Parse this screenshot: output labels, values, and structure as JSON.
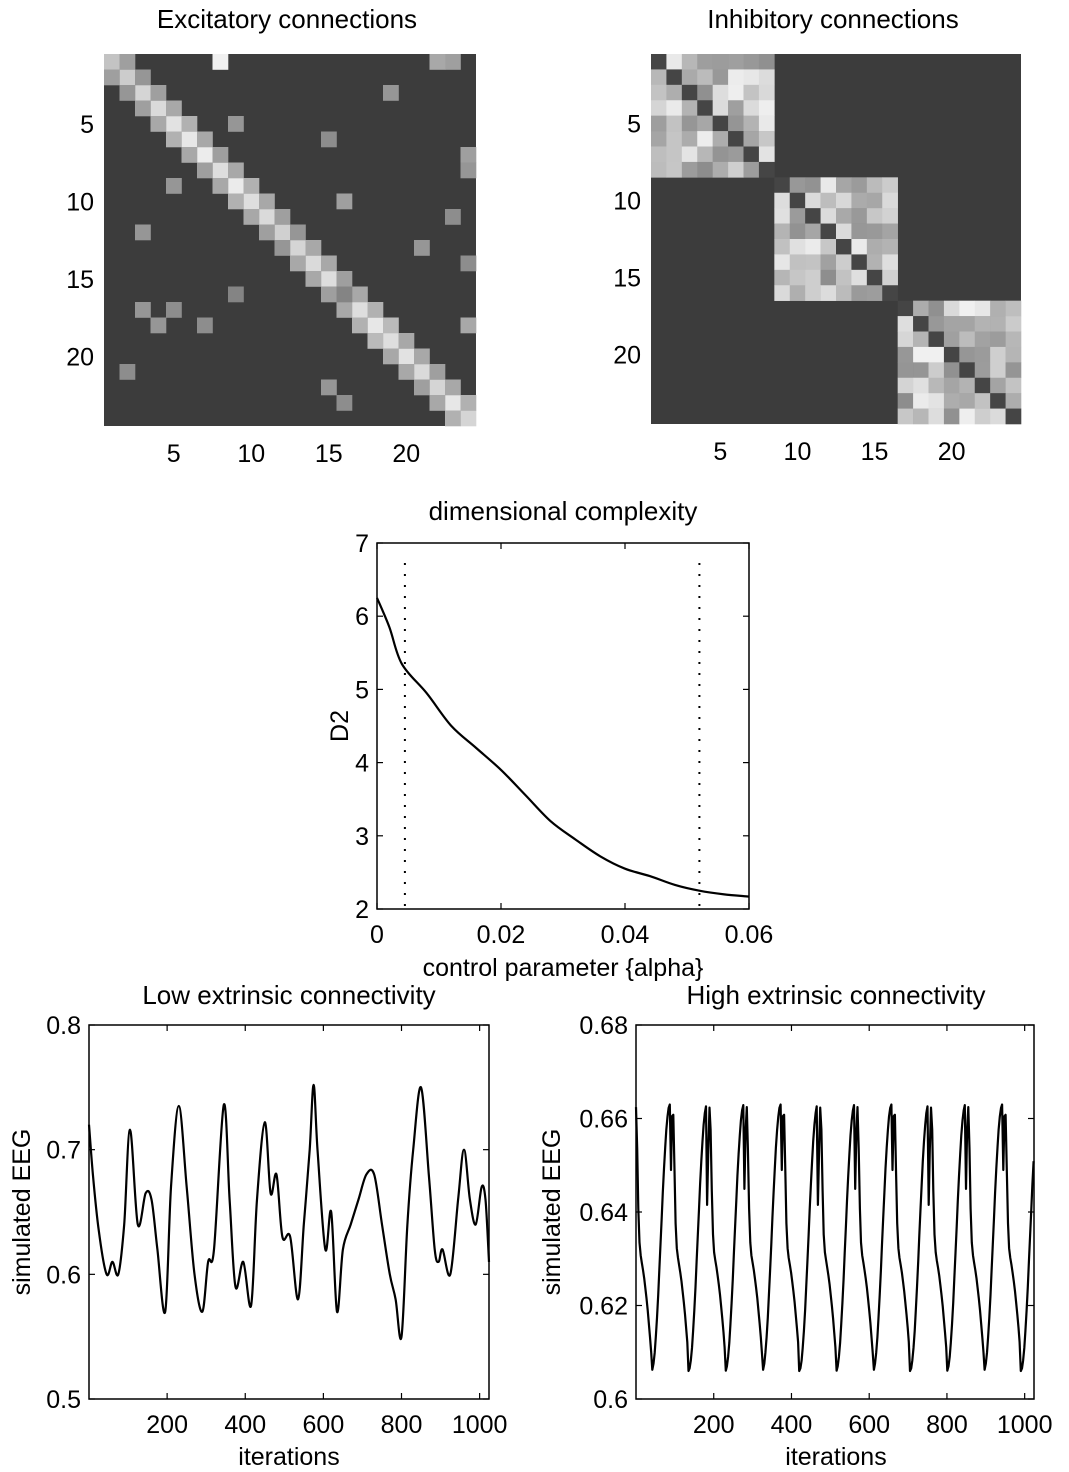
{
  "chart_data": [
    {
      "type": "heatmap",
      "title": "Excitatory connections",
      "size": 24,
      "ticks": [
        5,
        10,
        15,
        20
      ],
      "background": "#3c3c3c",
      "cells": [
        [
          1,
          1,
          0.75
        ],
        [
          2,
          2,
          0.8
        ],
        [
          3,
          3,
          0.85
        ],
        [
          4,
          4,
          0.88
        ],
        [
          5,
          5,
          0.92
        ],
        [
          6,
          6,
          0.95
        ],
        [
          7,
          7,
          0.98
        ],
        [
          8,
          8,
          0.9
        ],
        [
          9,
          9,
          0.97
        ],
        [
          10,
          10,
          0.9
        ],
        [
          11,
          11,
          0.88
        ],
        [
          12,
          12,
          0.82
        ],
        [
          13,
          13,
          0.85
        ],
        [
          14,
          14,
          0.88
        ],
        [
          15,
          15,
          0.9
        ],
        [
          16,
          16,
          0.8
        ],
        [
          17,
          17,
          0.9
        ],
        [
          18,
          18,
          0.95
        ],
        [
          19,
          19,
          0.9
        ],
        [
          20,
          20,
          0.92
        ],
        [
          21,
          21,
          0.88
        ],
        [
          22,
          22,
          0.85
        ],
        [
          23,
          23,
          0.95
        ],
        [
          24,
          24,
          0.85
        ],
        [
          1,
          2,
          0.55
        ],
        [
          2,
          3,
          0.5
        ],
        [
          3,
          4,
          0.55
        ],
        [
          4,
          5,
          0.6
        ],
        [
          5,
          6,
          0.65
        ],
        [
          6,
          7,
          0.6
        ],
        [
          7,
          8,
          0.55
        ],
        [
          8,
          9,
          0.6
        ],
        [
          9,
          10,
          0.65
        ],
        [
          10,
          11,
          0.6
        ],
        [
          11,
          12,
          0.55
        ],
        [
          12,
          13,
          0.5
        ],
        [
          13,
          14,
          0.6
        ],
        [
          14,
          15,
          0.6
        ],
        [
          15,
          16,
          0.55
        ],
        [
          16,
          17,
          0.6
        ],
        [
          17,
          18,
          0.65
        ],
        [
          18,
          19,
          0.7
        ],
        [
          19,
          20,
          0.6
        ],
        [
          20,
          21,
          0.6
        ],
        [
          21,
          22,
          0.55
        ],
        [
          22,
          23,
          0.6
        ],
        [
          23,
          24,
          0.65
        ],
        [
          2,
          1,
          0.55
        ],
        [
          3,
          2,
          0.5
        ],
        [
          4,
          3,
          0.55
        ],
        [
          5,
          4,
          0.6
        ],
        [
          6,
          5,
          0.65
        ],
        [
          7,
          6,
          0.6
        ],
        [
          8,
          7,
          0.55
        ],
        [
          9,
          8,
          0.6
        ],
        [
          10,
          9,
          0.65
        ],
        [
          11,
          10,
          0.6
        ],
        [
          12,
          11,
          0.55
        ],
        [
          13,
          12,
          0.5
        ],
        [
          14,
          13,
          0.6
        ],
        [
          15,
          14,
          0.6
        ],
        [
          16,
          15,
          0.55
        ],
        [
          17,
          16,
          0.6
        ],
        [
          18,
          17,
          0.65
        ],
        [
          19,
          18,
          0.7
        ],
        [
          20,
          19,
          0.6
        ],
        [
          21,
          20,
          0.6
        ],
        [
          22,
          21,
          0.55
        ],
        [
          23,
          22,
          0.6
        ],
        [
          24,
          23,
          0.65
        ],
        [
          1,
          8,
          1.0
        ],
        [
          1,
          23,
          0.55
        ],
        [
          1,
          22,
          0.6
        ],
        [
          3,
          19,
          0.5
        ],
        [
          5,
          9,
          0.5
        ],
        [
          6,
          15,
          0.45
        ],
        [
          7,
          24,
          0.55
        ],
        [
          8,
          24,
          0.5
        ],
        [
          9,
          5,
          0.5
        ],
        [
          10,
          16,
          0.55
        ],
        [
          11,
          23,
          0.45
        ],
        [
          12,
          3,
          0.5
        ],
        [
          13,
          21,
          0.5
        ],
        [
          14,
          24,
          0.45
        ],
        [
          16,
          9,
          0.4
        ],
        [
          16,
          16,
          0.4
        ],
        [
          17,
          3,
          0.5
        ],
        [
          17,
          5,
          0.45
        ],
        [
          18,
          4,
          0.5
        ],
        [
          18,
          7,
          0.45
        ],
        [
          18,
          24,
          0.6
        ],
        [
          21,
          2,
          0.45
        ],
        [
          22,
          15,
          0.5
        ],
        [
          23,
          16,
          0.45
        ]
      ]
    },
    {
      "type": "heatmap",
      "title": "Inhibitory connections",
      "size": 24,
      "ticks": [
        5,
        10,
        15,
        20
      ],
      "background": "#3c3c3c",
      "blocks": [
        [
          1,
          8
        ],
        [
          9,
          16
        ],
        [
          17,
          24
        ]
      ]
    },
    {
      "type": "line",
      "title": "dimensional complexity",
      "xlabel": "control parameter {alpha}",
      "ylabel": "D2",
      "xlim": [
        0,
        0.06
      ],
      "ylim": [
        2,
        7
      ],
      "xticks": [
        0,
        0.02,
        0.04,
        0.06
      ],
      "xtick_labels": [
        "0",
        "0.02",
        "0.04",
        "0.06"
      ],
      "yticks": [
        2,
        3,
        4,
        5,
        6,
        7
      ],
      "x": [
        0,
        0.002,
        0.004,
        0.008,
        0.012,
        0.016,
        0.02,
        0.024,
        0.028,
        0.032,
        0.036,
        0.04,
        0.044,
        0.048,
        0.052,
        0.056,
        0.06
      ],
      "y": [
        6.25,
        5.85,
        5.35,
        4.95,
        4.5,
        4.2,
        3.9,
        3.55,
        3.2,
        2.95,
        2.72,
        2.55,
        2.45,
        2.33,
        2.25,
        2.2,
        2.17
      ],
      "vlines": [
        0.0045,
        0.052
      ]
    },
    {
      "type": "line",
      "title": "Low extrinsic connectivity",
      "xlabel": "iterations",
      "ylabel": "simulated EEG",
      "xlim": [
        0,
        1024
      ],
      "ylim": [
        0.5,
        0.8
      ],
      "xticks": [
        200,
        400,
        600,
        800,
        1000
      ],
      "yticks": [
        0.5,
        0.6,
        0.7,
        0.8
      ],
      "ytick_labels": [
        "0.5",
        "0.6",
        "0.7",
        "0.8"
      ],
      "x": [
        0,
        10,
        25,
        45,
        60,
        75,
        90,
        105,
        125,
        145,
        160,
        175,
        195,
        210,
        230,
        250,
        270,
        290,
        305,
        320,
        345,
        360,
        375,
        395,
        415,
        430,
        450,
        465,
        480,
        495,
        515,
        535,
        550,
        565,
        575,
        585,
        605,
        620,
        635,
        650,
        670,
        690,
        710,
        730,
        750,
        770,
        785,
        800,
        815,
        830,
        850,
        870,
        885,
        895,
        905,
        925,
        945,
        960,
        975,
        990,
        1005,
        1015,
        1024
      ],
      "y": [
        0.72,
        0.68,
        0.635,
        0.6,
        0.61,
        0.6,
        0.64,
        0.716,
        0.64,
        0.665,
        0.66,
        0.62,
        0.57,
        0.67,
        0.735,
        0.67,
        0.6,
        0.57,
        0.61,
        0.62,
        0.736,
        0.66,
        0.59,
        0.61,
        0.575,
        0.66,
        0.722,
        0.665,
        0.68,
        0.63,
        0.63,
        0.58,
        0.64,
        0.7,
        0.752,
        0.7,
        0.62,
        0.65,
        0.57,
        0.62,
        0.64,
        0.66,
        0.68,
        0.68,
        0.64,
        0.6,
        0.58,
        0.55,
        0.64,
        0.7,
        0.75,
        0.68,
        0.62,
        0.61,
        0.62,
        0.6,
        0.66,
        0.7,
        0.66,
        0.64,
        0.67,
        0.66,
        0.61
      ]
    },
    {
      "type": "line",
      "title": "High extrinsic connectivity",
      "xlabel": "iterations",
      "ylabel": "simulated EEG",
      "xlim": [
        0,
        1024
      ],
      "ylim": [
        0.6,
        0.68
      ],
      "xticks": [
        200,
        400,
        600,
        800,
        1000
      ],
      "yticks": [
        0.6,
        0.62,
        0.64,
        0.66,
        0.68
      ],
      "ytick_labels": [
        "0.6",
        "0.62",
        "0.64",
        "0.66",
        "0.68"
      ],
      "period": 95,
      "phase": 40,
      "base": 0.634,
      "peak": 0.663,
      "trough": 0.606
    }
  ]
}
